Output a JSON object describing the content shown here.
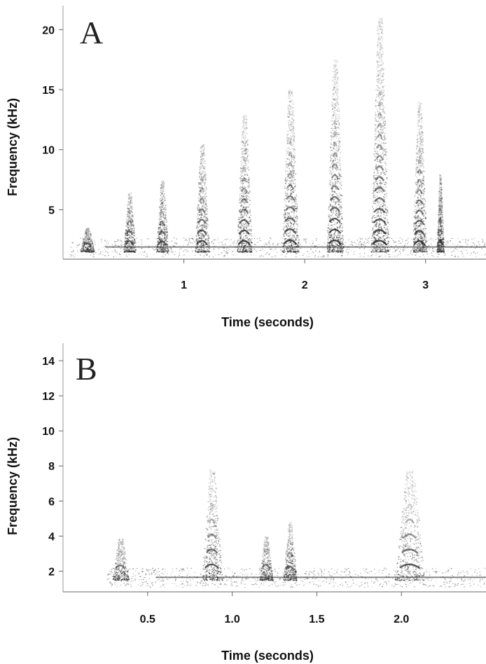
{
  "chart_data": [
    {
      "type": "spectrogram",
      "panel_label": "A",
      "xlabel": "Time (seconds)",
      "ylabel": "Frequency (kHz)",
      "xlim": [
        0,
        3.5
      ],
      "ylim": [
        1,
        22
      ],
      "x_ticks": [
        1,
        2,
        3
      ],
      "y_ticks": [
        5,
        10,
        15,
        20
      ],
      "baseline_band_khz": [
        1.5,
        2.3
      ],
      "notes": [
        {
          "t": 0.2,
          "peak_khz": 3.5,
          "dur": 0.12
        },
        {
          "t": 0.55,
          "peak_khz": 6.5,
          "dur": 0.1
        },
        {
          "t": 0.82,
          "peak_khz": 7.5,
          "dur": 0.1
        },
        {
          "t": 1.15,
          "peak_khz": 10.5,
          "dur": 0.12
        },
        {
          "t": 1.5,
          "peak_khz": 13,
          "dur": 0.13
        },
        {
          "t": 1.88,
          "peak_khz": 15,
          "dur": 0.14
        },
        {
          "t": 2.25,
          "peak_khz": 17.5,
          "dur": 0.14
        },
        {
          "t": 2.62,
          "peak_khz": 21,
          "dur": 0.15
        },
        {
          "t": 2.95,
          "peak_khz": 14,
          "dur": 0.12
        },
        {
          "t": 3.12,
          "peak_khz": 8,
          "dur": 0.06
        }
      ]
    },
    {
      "type": "spectrogram",
      "panel_label": "B",
      "xlabel": "Time (seconds)",
      "ylabel": "Frequency (kHz)",
      "xlim": [
        0,
        2.5
      ],
      "ylim": [
        0.9,
        15
      ],
      "x_ticks": [
        "0.5",
        "1.0",
        "1.5",
        "2.0"
      ],
      "y_ticks": [
        2,
        4,
        6,
        8,
        10,
        12,
        14
      ],
      "baseline_band_khz": [
        1.5,
        1.8
      ],
      "notes": [
        {
          "t": 0.34,
          "peak_khz": 3.9,
          "dur": 0.1
        },
        {
          "t": 0.88,
          "peak_khz": 7.8,
          "dur": 0.12
        },
        {
          "t": 1.2,
          "peak_khz": 4.0,
          "dur": 0.08
        },
        {
          "t": 1.34,
          "peak_khz": 4.8,
          "dur": 0.08
        },
        {
          "t": 2.05,
          "peak_khz": 7.8,
          "dur": 0.18
        }
      ]
    }
  ]
}
